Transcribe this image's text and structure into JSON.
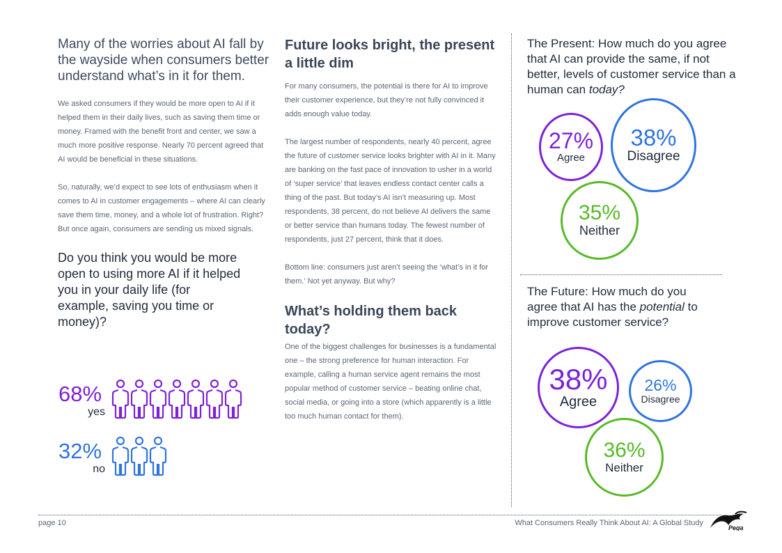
{
  "col1": {
    "lead": "Many of the worries about AI fall by the wayside when consumers better understand what’s in it for them.",
    "para1": "We asked consumers if they would be more open to AI if it helped them in their daily lives, such as saving them time or money. Framed with the benefit front and center, we saw a much more positive response. Nearly 70 percent agreed that AI would be beneficial in these situations.",
    "para2": "So, naturally, we’d expect to see lots of enthusiasm when it comes to AI in customer engagements – where AI can clearly save them time, money, and a whole lot of frustration. Right? But once again, consumers are sending us mixed signals.",
    "question": "Do you think you would be more open to using more AI if it helped you in your daily life (for example, saving you time or money)?",
    "yes": {
      "pct": "68%",
      "label": "yes",
      "color": "#7c22d6",
      "icons": 7
    },
    "no": {
      "pct": "32%",
      "label": "no",
      "color": "#2f73e0",
      "icons": 3
    }
  },
  "col2": {
    "heading1": "Future looks bright, the present a little dim",
    "p1": "For many consumers, the potential is there for AI to improve their customer experience, but they’re not fully convinced it adds enough value today.",
    "p2": "The largest number of respondents, nearly 40 percent, agree the future of customer service looks brighter with AI in it. Many are banking on the fast pace of innovation to usher in a world of ‘super service’ that leaves endless contact center calls a thing of the past. But today’s AI isn’t measuring up. Most respondents, 38 percent, do not believe AI delivers the same or better service than humans today. The fewest number of respondents, just 27 percent, think that it does.",
    "p3": "Bottom line: consumers just aren’t seeing the ‘what’s in it for them.’ Not yet anyway. But why?",
    "heading2": "What’s holding them back today?",
    "p4": "One of the biggest challenges for businesses is a fundamental one – the strong preference for human interaction. For example, calling a human service agent remains the most popular method of customer service – beating online chat, social media, or going into a store (which apparently is a little too much human contact for them)."
  },
  "present": {
    "q_main": "The Present: How much do you agree that AI can provide the same, if not better, levels of customer service than a human can ",
    "q_em": "today?",
    "agree": {
      "pct": "27%",
      "label": "Agree",
      "color": "#7c22d6"
    },
    "disagree": {
      "pct": "38%",
      "label": "Disagree",
      "color": "#2f73e0"
    },
    "neither": {
      "pct": "35%",
      "label": "Neither",
      "color": "#58b928"
    }
  },
  "future": {
    "q_pre": "The Future: How much do you agree that AI has the ",
    "q_em": "potential",
    "q_post": " to improve customer service?",
    "agree": {
      "pct": "38%",
      "label": "Agree",
      "color": "#7c22d6"
    },
    "disagree": {
      "pct": "26%",
      "label": "Disagree",
      "color": "#2f73e0"
    },
    "neither": {
      "pct": "36%",
      "label": "Neither",
      "color": "#58b928"
    }
  },
  "footer": {
    "page": "page 10",
    "title": "What Consumers Really Think About AI: A Global Study",
    "logo_text": "Pega"
  }
}
